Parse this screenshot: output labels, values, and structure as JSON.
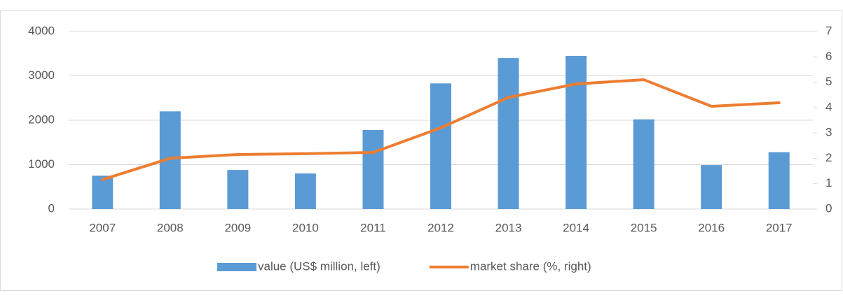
{
  "chart_data": {
    "type": "bar_line",
    "categories": [
      "2007",
      "2008",
      "2009",
      "2010",
      "2011",
      "2012",
      "2013",
      "2014",
      "2015",
      "2016",
      "2017"
    ],
    "series": [
      {
        "name": "value (US$ million, left)",
        "color": "#5b9bd5",
        "type": "bar",
        "axis": "y",
        "values": [
          750,
          2200,
          880,
          800,
          1780,
          2830,
          3400,
          3450,
          2020,
          990,
          1280
        ]
      },
      {
        "name": "market share (%, right)",
        "color": "#ed7d31",
        "type": "line",
        "axis": "y2",
        "values": [
          1.16,
          2.0,
          2.15,
          2.18,
          2.23,
          3.2,
          4.4,
          4.93,
          5.1,
          4.05,
          4.19
        ]
      }
    ],
    "ylim": [
      0,
      4000
    ],
    "yticks": [
      0,
      1000,
      2000,
      3000,
      4000
    ],
    "y2lim": [
      0,
      7
    ],
    "y2ticks": [
      0,
      1,
      2,
      3,
      4,
      5,
      6,
      7
    ],
    "grid": true,
    "legend": "bottom"
  }
}
